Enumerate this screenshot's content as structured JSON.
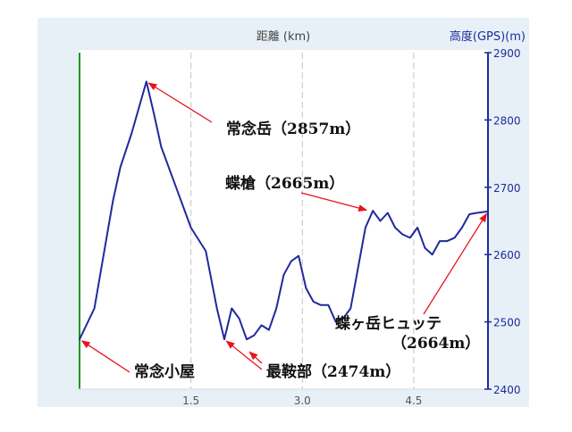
{
  "chart_data": {
    "type": "line",
    "title": "",
    "xlabel": "距離 (km)",
    "ylabel": "高度(GPS)(m)",
    "xlim": [
      0,
      5.5
    ],
    "ylim": [
      2400,
      2900
    ],
    "x_ticks": [
      "1.5",
      "3.0",
      "4.5"
    ],
    "y_ticks": [
      "2400",
      "2500",
      "2600",
      "2700",
      "2800",
      "2900"
    ],
    "grid": "vertical dashed",
    "colors": {
      "line": "#1f2a9c",
      "right_axis": "#1f2a9c",
      "left_axis": "#119911",
      "annotation_arrow": "#e8141c",
      "panel": "#ffffff",
      "frame": "#e7f0f6"
    },
    "series": [
      {
        "x": [
          0.0,
          0.2,
          0.45,
          0.55,
          0.7,
          0.9,
          1.0,
          1.1,
          1.3,
          1.5,
          1.7,
          1.85,
          1.95,
          2.05,
          2.15,
          2.25,
          2.35,
          2.45,
          2.55,
          2.65,
          2.75,
          2.85,
          2.95,
          3.05,
          3.15,
          3.25,
          3.35,
          3.45,
          3.55,
          3.65,
          3.75,
          3.85,
          3.95,
          4.05,
          4.15,
          4.25,
          4.35,
          4.45,
          4.55,
          4.65,
          4.75,
          4.85,
          4.95,
          5.05,
          5.15,
          5.25,
          5.35,
          5.5
        ],
        "values": [
          2474,
          2520,
          2680,
          2730,
          2780,
          2857,
          2810,
          2760,
          2700,
          2640,
          2605,
          2520,
          2474,
          2520,
          2505,
          2474,
          2480,
          2495,
          2488,
          2520,
          2570,
          2590,
          2598,
          2550,
          2530,
          2525,
          2525,
          2500,
          2505,
          2520,
          2580,
          2640,
          2665,
          2650,
          2662,
          2640,
          2630,
          2625,
          2640,
          2610,
          2600,
          2620,
          2620,
          2625,
          2640,
          2660,
          2662,
          2664
        ]
      }
    ],
    "annotations": [
      {
        "label": "常念岳（2857m）",
        "x": 0.9,
        "y": 2857
      },
      {
        "label": "蝶槍（2665m）",
        "x": 3.9,
        "y": 2665
      },
      {
        "label": "蝶ヶ岳ヒュッテ",
        "sublabel": "（2664m）",
        "x": 5.5,
        "y": 2664
      },
      {
        "label": "常念小屋",
        "x": 0.0,
        "y": 2474
      },
      {
        "label": "最鞍部（2474m）",
        "x": 1.95,
        "y": 2474
      }
    ]
  }
}
